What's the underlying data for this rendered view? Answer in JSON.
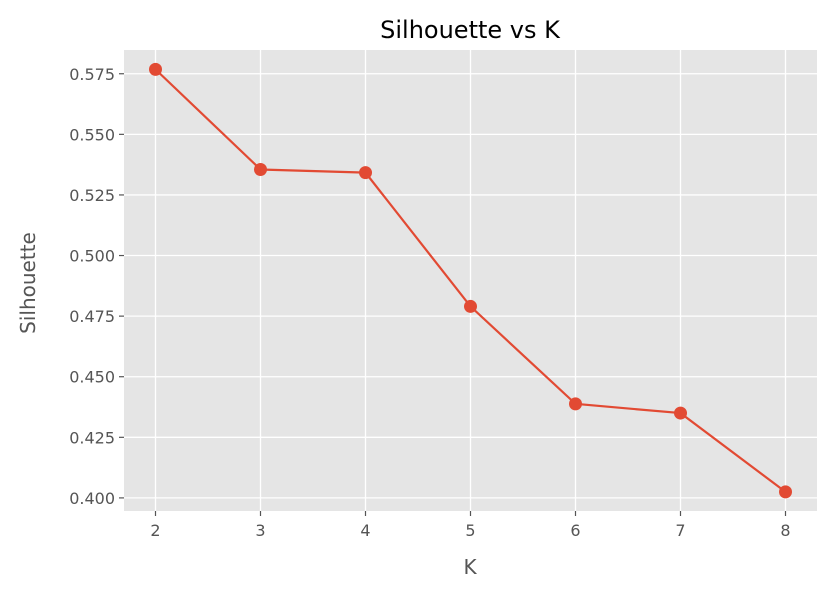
{
  "chart_data": {
    "type": "line",
    "title": "Silhouette vs K",
    "xlabel": "K",
    "ylabel": "Silhouette",
    "x": [
      2,
      3,
      4,
      5,
      6,
      7,
      8
    ],
    "series": [
      {
        "values": [
          0.5768,
          0.5355,
          0.5342,
          0.479,
          0.4388,
          0.435,
          0.4025
        ]
      }
    ],
    "xticks": [
      "2",
      "3",
      "4",
      "5",
      "6",
      "7",
      "8"
    ],
    "yticks": [
      "0.400",
      "0.425",
      "0.450",
      "0.475",
      "0.500",
      "0.525",
      "0.550",
      "0.575"
    ],
    "xlim": [
      1.7,
      8.3
    ],
    "ylim": [
      0.3946,
      0.5848
    ],
    "grid": true,
    "style": "ggplot",
    "colors": {
      "background": "#E5E5E5",
      "grid": "#FFFFFF",
      "line": "#E24A33",
      "tick_text": "#555555",
      "title_text": "#000000"
    }
  }
}
